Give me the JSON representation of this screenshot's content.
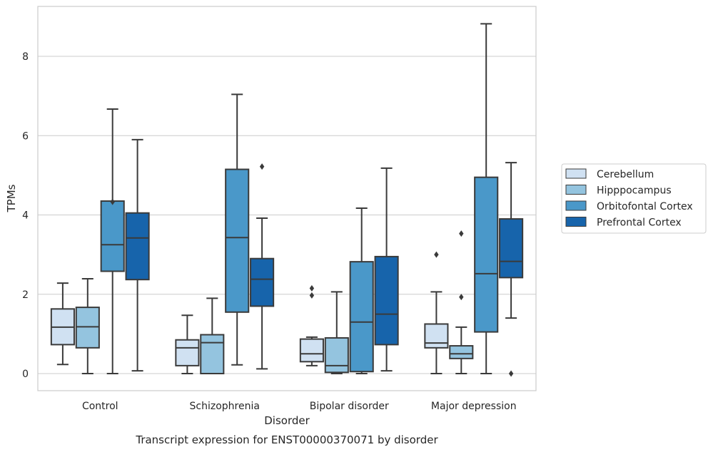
{
  "chart_data": {
    "type": "box",
    "title": "Transcript expression for ENST00000370071 by disorder",
    "xlabel": "Disorder",
    "ylabel": "TPMs",
    "ylim": [
      -0.43,
      9.27
    ],
    "yticks": [
      0,
      2,
      4,
      6,
      8
    ],
    "grid": "horizontal",
    "legend_position": "right",
    "categories": [
      "Control",
      "Schizophrenia",
      "Bipolar disorder",
      "Major depression"
    ],
    "series": [
      {
        "name": "Cerebellum",
        "color": "#d0e1f2",
        "boxes": [
          {
            "whisker_low": 0.23,
            "q1": 0.73,
            "median": 1.17,
            "q3": 1.63,
            "whisker_high": 2.28,
            "outliers": []
          },
          {
            "whisker_low": 0.0,
            "q1": 0.2,
            "median": 0.65,
            "q3": 0.85,
            "whisker_high": 1.47,
            "outliers": []
          },
          {
            "whisker_low": 0.2,
            "q1": 0.3,
            "median": 0.5,
            "q3": 0.87,
            "whisker_high": 0.92,
            "outliers": [
              1.97,
              2.15
            ]
          },
          {
            "whisker_low": 0.0,
            "q1": 0.65,
            "median": 0.77,
            "q3": 1.25,
            "whisker_high": 2.06,
            "outliers": [
              3.0
            ]
          }
        ]
      },
      {
        "name": "Hipppocampus",
        "color": "#94c4df",
        "boxes": [
          {
            "whisker_low": 0.0,
            "q1": 0.65,
            "median": 1.18,
            "q3": 1.67,
            "whisker_high": 2.39,
            "outliers": []
          },
          {
            "whisker_low": 0.0,
            "q1": 0.0,
            "median": 0.78,
            "q3": 0.98,
            "whisker_high": 1.9,
            "outliers": []
          },
          {
            "whisker_low": 0.0,
            "q1": 0.03,
            "median": 0.2,
            "q3": 0.9,
            "whisker_high": 2.06,
            "outliers": []
          },
          {
            "whisker_low": 0.0,
            "q1": 0.38,
            "median": 0.5,
            "q3": 0.7,
            "whisker_high": 1.17,
            "outliers": [
              1.93,
              3.53
            ]
          }
        ]
      },
      {
        "name": "Orbitofontal Cortex",
        "color": "#4a98c9",
        "boxes": [
          {
            "whisker_low": 0.0,
            "q1": 2.58,
            "median": 3.25,
            "q3": 4.35,
            "whisker_high": 6.67,
            "outliers": [
              4.33
            ]
          },
          {
            "whisker_low": 0.22,
            "q1": 1.55,
            "median": 3.43,
            "q3": 5.15,
            "whisker_high": 7.04,
            "outliers": []
          },
          {
            "whisker_low": 0.0,
            "q1": 0.05,
            "median": 1.3,
            "q3": 2.82,
            "whisker_high": 4.17,
            "outliers": []
          },
          {
            "whisker_low": 0.0,
            "q1": 1.05,
            "median": 2.52,
            "q3": 4.95,
            "whisker_high": 8.82,
            "outliers": []
          }
        ]
      },
      {
        "name": "Prefrontal Cortex",
        "color": "#1764ab",
        "boxes": [
          {
            "whisker_low": 0.07,
            "q1": 2.37,
            "median": 3.42,
            "q3": 4.05,
            "whisker_high": 5.9,
            "outliers": []
          },
          {
            "whisker_low": 0.12,
            "q1": 1.7,
            "median": 2.38,
            "q3": 2.9,
            "whisker_high": 3.92,
            "outliers": [
              5.22
            ]
          },
          {
            "whisker_low": 0.07,
            "q1": 0.73,
            "median": 1.5,
            "q3": 2.95,
            "whisker_high": 5.18,
            "outliers": []
          },
          {
            "whisker_low": 1.4,
            "q1": 2.42,
            "median": 2.83,
            "q3": 3.9,
            "whisker_high": 5.32,
            "outliers": [
              0.0
            ]
          }
        ]
      }
    ]
  }
}
